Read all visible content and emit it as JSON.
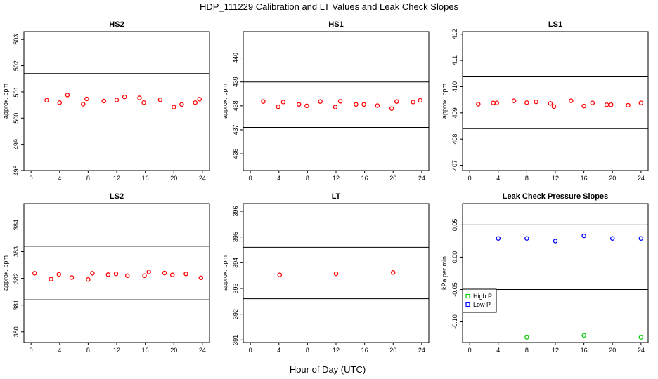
{
  "figure": {
    "title": "HDP_111229  Calibration and LT Values and Leak Check Slopes",
    "xlabel": "Hour of Day (UTC)"
  },
  "chart_data": [
    {
      "type": "scatter",
      "title": "HS2",
      "ylabel": "approx. ppm",
      "xlim": [
        -1,
        25
      ],
      "ylim": [
        498,
        503.3
      ],
      "xticks": [
        0,
        4,
        8,
        12,
        16,
        20,
        24
      ],
      "yticks": [
        498,
        499,
        500,
        501,
        502,
        503
      ],
      "hlines": [
        501.7,
        499.7
      ],
      "series": [
        {
          "color": "#ff0000",
          "x": [
            2.2,
            4.0,
            5.1,
            7.3,
            7.8,
            10.2,
            12.0,
            13.1,
            15.2,
            15.8,
            18.1,
            20.0,
            21.1,
            23.0,
            23.6
          ],
          "y": [
            500.68,
            500.59,
            500.88,
            500.53,
            500.73,
            500.65,
            500.69,
            500.81,
            500.77,
            500.59,
            500.7,
            500.42,
            500.52,
            500.59,
            500.72
          ]
        }
      ]
    },
    {
      "type": "scatter",
      "title": "HS1",
      "ylabel": "approx. ppm",
      "xlim": [
        -1,
        25
      ],
      "ylim": [
        435.3,
        441.1
      ],
      "xticks": [
        0,
        4,
        8,
        12,
        16,
        20,
        24
      ],
      "yticks": [
        436,
        437,
        438,
        439,
        440
      ],
      "hlines": [
        439.0,
        437.1
      ],
      "series": [
        {
          "color": "#ff0000",
          "x": [
            1.8,
            3.9,
            4.6,
            6.8,
            7.9,
            9.8,
            11.9,
            12.6,
            14.8,
            15.9,
            17.8,
            19.8,
            20.5,
            22.8,
            23.8
          ],
          "y": [
            438.18,
            437.96,
            438.16,
            438.06,
            438.0,
            438.18,
            437.95,
            438.19,
            438.06,
            438.06,
            438.01,
            437.89,
            438.18,
            438.16,
            438.23
          ]
        }
      ]
    },
    {
      "type": "scatter",
      "title": "LS1",
      "ylabel": "approx. ppm",
      "xlim": [
        -1,
        25
      ],
      "ylim": [
        406.8,
        412.1
      ],
      "xticks": [
        0,
        4,
        8,
        12,
        16,
        20,
        24
      ],
      "yticks": [
        407,
        408,
        409,
        410,
        411,
        412
      ],
      "hlines": [
        410.4,
        408.4
      ],
      "series": [
        {
          "color": "#ff0000",
          "x": [
            1.2,
            3.3,
            3.8,
            6.2,
            8.0,
            9.3,
            11.3,
            11.8,
            14.2,
            16.0,
            17.2,
            19.2,
            19.8,
            22.2,
            24.0
          ],
          "y": [
            409.33,
            409.38,
            409.38,
            409.46,
            409.39,
            409.42,
            409.36,
            409.24,
            409.46,
            409.26,
            409.38,
            409.31,
            409.31,
            409.29,
            409.38
          ]
        }
      ]
    },
    {
      "type": "scatter",
      "title": "LS2",
      "ylabel": "approx. ppm",
      "xlim": [
        -1,
        25
      ],
      "ylim": [
        379.6,
        384.8
      ],
      "xticks": [
        0,
        4,
        8,
        12,
        16,
        20,
        24
      ],
      "yticks": [
        380,
        381,
        382,
        383,
        384
      ],
      "hlines": [
        383.2,
        381.2
      ],
      "series": [
        {
          "color": "#ff0000",
          "x": [
            0.5,
            2.8,
            3.9,
            5.7,
            8.0,
            8.6,
            10.8,
            11.9,
            13.5,
            15.9,
            16.5,
            18.7,
            19.8,
            21.7,
            23.8
          ],
          "y": [
            382.19,
            381.97,
            382.15,
            382.03,
            381.96,
            382.19,
            382.14,
            382.17,
            382.1,
            382.1,
            382.24,
            382.2,
            382.13,
            382.17,
            382.02
          ]
        }
      ]
    },
    {
      "type": "scatter",
      "title": "LT",
      "ylabel": "approx. ppm",
      "xlim": [
        -1,
        25
      ],
      "ylim": [
        390.9,
        396.3
      ],
      "xticks": [
        0,
        4,
        8,
        12,
        16,
        20,
        24
      ],
      "yticks": [
        391,
        392,
        393,
        394,
        395,
        396
      ],
      "hlines": [
        394.6,
        392.6
      ],
      "series": [
        {
          "color": "#ff0000",
          "x": [
            4.1,
            12.0,
            20.0
          ],
          "y": [
            393.53,
            393.57,
            393.62
          ]
        }
      ]
    },
    {
      "type": "scatter",
      "title": "Leak Check Pressure Slopes",
      "ylabel": "kPa per min",
      "xlim": [
        -1,
        25
      ],
      "ylim": [
        -0.132,
        0.083
      ],
      "xticks": [
        0,
        4,
        8,
        12,
        16,
        20,
        24
      ],
      "yticks": [
        -0.1,
        -0.05,
        0.0,
        0.05
      ],
      "ytick_labels": [
        "-0.10",
        "-0.05",
        "0.00",
        "0.05"
      ],
      "hlines": [
        0.05,
        -0.05
      ],
      "legend": {
        "position": "left",
        "entries": [
          "High P",
          "Low P"
        ]
      },
      "series": [
        {
          "name": "High P",
          "color": "#00cc00",
          "x": [
            8.0,
            16.0,
            24.0
          ],
          "y": [
            -0.124,
            -0.121,
            -0.124
          ]
        },
        {
          "name": "Low P",
          "color": "#0000ff",
          "x": [
            4.0,
            8.0,
            12.0,
            16.0,
            20.0,
            24.0
          ],
          "y": [
            0.029,
            0.029,
            0.025,
            0.033,
            0.029,
            0.029
          ]
        }
      ]
    }
  ]
}
